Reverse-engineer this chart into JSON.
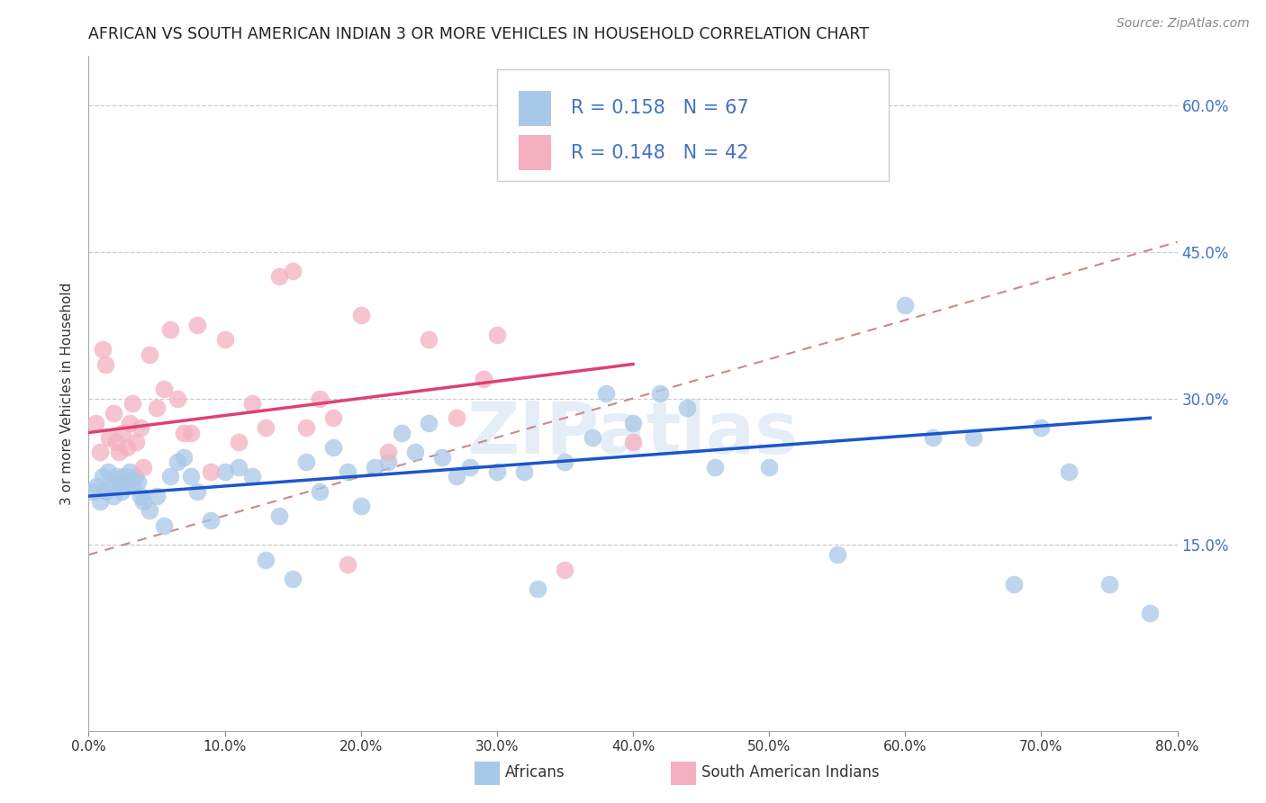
{
  "title": "AFRICAN VS SOUTH AMERICAN INDIAN 3 OR MORE VEHICLES IN HOUSEHOLD CORRELATION CHART",
  "source": "Source: ZipAtlas.com",
  "ylabel": "3 or more Vehicles in Household",
  "legend_africans": "Africans",
  "legend_sa_indians": "South American Indians",
  "R_african": 0.158,
  "N_african": 67,
  "R_sa_indian": 0.148,
  "N_sa_indian": 42,
  "xlim": [
    0.0,
    80.0
  ],
  "ylim": [
    -4.0,
    65.0
  ],
  "xtick_vals": [
    0.0,
    10.0,
    20.0,
    30.0,
    40.0,
    50.0,
    60.0,
    70.0,
    80.0
  ],
  "ytick_vals": [
    15.0,
    30.0,
    45.0,
    60.0
  ],
  "color_african": "#a8c8e8",
  "color_sa_indian": "#f4b0c0",
  "color_line_african": "#1a56cc",
  "color_line_sa_indian": "#e04070",
  "color_dashed": "#cc8888",
  "color_axis_blue": "#4472c4",
  "background_color": "#ffffff",
  "grid_color": "#cccccc",
  "african_x": [
    0.3,
    0.6,
    0.8,
    1.0,
    1.2,
    1.4,
    1.6,
    1.8,
    2.0,
    2.2,
    2.4,
    2.6,
    2.8,
    3.0,
    3.2,
    3.4,
    3.6,
    3.8,
    4.0,
    4.5,
    5.0,
    5.5,
    6.0,
    6.5,
    7.0,
    7.5,
    8.0,
    9.0,
    10.0,
    11.0,
    12.0,
    13.0,
    14.0,
    15.0,
    16.0,
    17.0,
    18.0,
    19.0,
    20.0,
    21.0,
    22.0,
    23.0,
    24.0,
    25.0,
    26.0,
    27.0,
    28.0,
    30.0,
    32.0,
    33.0,
    35.0,
    37.0,
    38.0,
    40.0,
    42.0,
    44.0,
    46.0,
    50.0,
    55.0,
    60.0,
    62.0,
    65.0,
    68.0,
    70.0,
    72.0,
    75.0,
    78.0
  ],
  "african_y": [
    20.5,
    21.0,
    19.5,
    22.0,
    20.5,
    22.5,
    21.0,
    20.0,
    22.0,
    21.5,
    20.5,
    22.0,
    21.0,
    22.5,
    21.0,
    22.0,
    21.5,
    20.0,
    19.5,
    18.5,
    20.0,
    17.0,
    22.0,
    23.5,
    24.0,
    22.0,
    20.5,
    17.5,
    22.5,
    23.0,
    22.0,
    13.5,
    18.0,
    11.5,
    23.5,
    20.5,
    25.0,
    22.5,
    19.0,
    23.0,
    23.5,
    26.5,
    24.5,
    27.5,
    24.0,
    22.0,
    23.0,
    22.5,
    22.5,
    10.5,
    23.5,
    26.0,
    30.5,
    27.5,
    30.5,
    29.0,
    23.0,
    23.0,
    14.0,
    39.5,
    26.0,
    26.0,
    11.0,
    27.0,
    22.5,
    11.0,
    8.0
  ],
  "sa_indian_x": [
    0.5,
    0.8,
    1.0,
    1.2,
    1.5,
    1.8,
    2.0,
    2.2,
    2.5,
    2.8,
    3.0,
    3.2,
    3.5,
    3.8,
    4.0,
    4.5,
    5.0,
    5.5,
    6.0,
    6.5,
    7.0,
    7.5,
    8.0,
    9.0,
    10.0,
    11.0,
    12.0,
    13.0,
    14.0,
    15.0,
    16.0,
    17.0,
    18.0,
    19.0,
    20.0,
    22.0,
    25.0,
    27.0,
    29.0,
    30.0,
    35.0,
    40.0
  ],
  "sa_indian_y": [
    27.5,
    24.5,
    35.0,
    33.5,
    26.0,
    28.5,
    25.5,
    24.5,
    26.5,
    25.0,
    27.5,
    29.5,
    25.5,
    27.0,
    23.0,
    34.5,
    29.0,
    31.0,
    37.0,
    30.0,
    26.5,
    26.5,
    37.5,
    22.5,
    36.0,
    25.5,
    29.5,
    27.0,
    42.5,
    43.0,
    27.0,
    30.0,
    28.0,
    13.0,
    38.5,
    24.5,
    36.0,
    28.0,
    32.0,
    36.5,
    12.5,
    25.5
  ],
  "african_line_x": [
    0.0,
    78.0
  ],
  "african_line_y": [
    20.0,
    28.0
  ],
  "sa_line_x": [
    0.0,
    40.0
  ],
  "sa_line_y": [
    26.5,
    33.5
  ],
  "dashed_line_x": [
    0.0,
    80.0
  ],
  "dashed_line_y": [
    14.0,
    46.0
  ]
}
